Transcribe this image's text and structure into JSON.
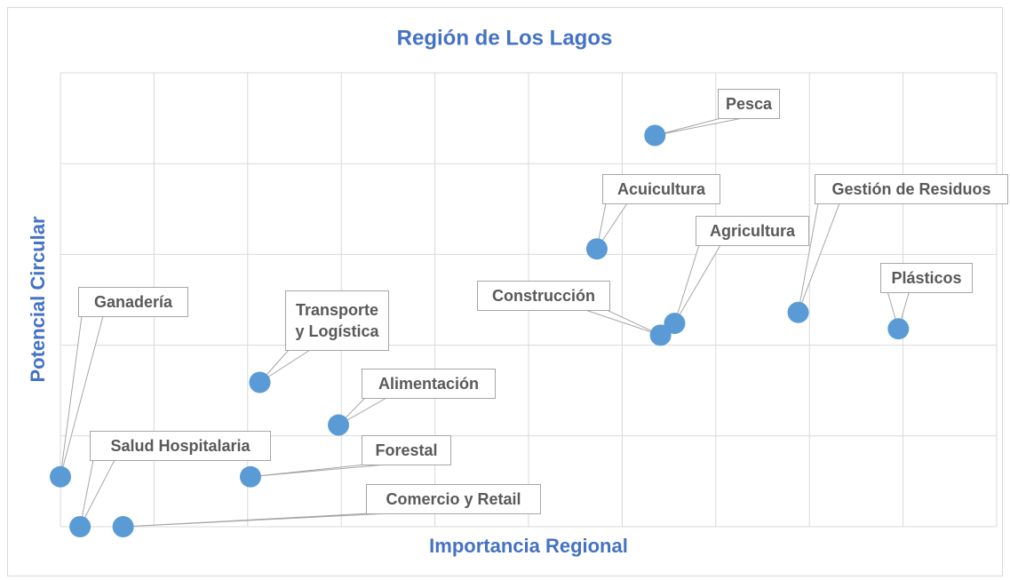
{
  "chart_data": {
    "type": "scatter",
    "title": "Región de Los Lagos",
    "x_label": "Importancia Regional",
    "y_label": "Potencial Circular",
    "color": "#5b9bd5",
    "grid": true,
    "xlim": [
      0,
      10
    ],
    "ylim": [
      0,
      5
    ],
    "xticks": [
      0,
      1,
      2,
      3,
      4,
      5,
      6,
      7,
      8,
      9,
      10
    ],
    "yticks": [
      0,
      1,
      2,
      3,
      4,
      5
    ],
    "labels": [
      "Pesca",
      "Acuicultura",
      "Gestión de Residuos",
      "Agricultura",
      "Construcción",
      "Plásticos",
      "Ganadería",
      "Transporte y Logística",
      "Alimentación",
      "Forestal",
      "Salud Hospitalaria",
      "Comercio y Retail"
    ],
    "x": [
      6.35,
      5.73,
      7.88,
      6.56,
      6.41,
      8.95,
      0,
      2.13,
      2.97,
      2.03,
      0.21,
      0.67
    ],
    "y": [
      4.31,
      3.06,
      2.36,
      2.24,
      2.11,
      2.18,
      0.55,
      1.59,
      1.12,
      0.55,
      0,
      0
    ]
  }
}
